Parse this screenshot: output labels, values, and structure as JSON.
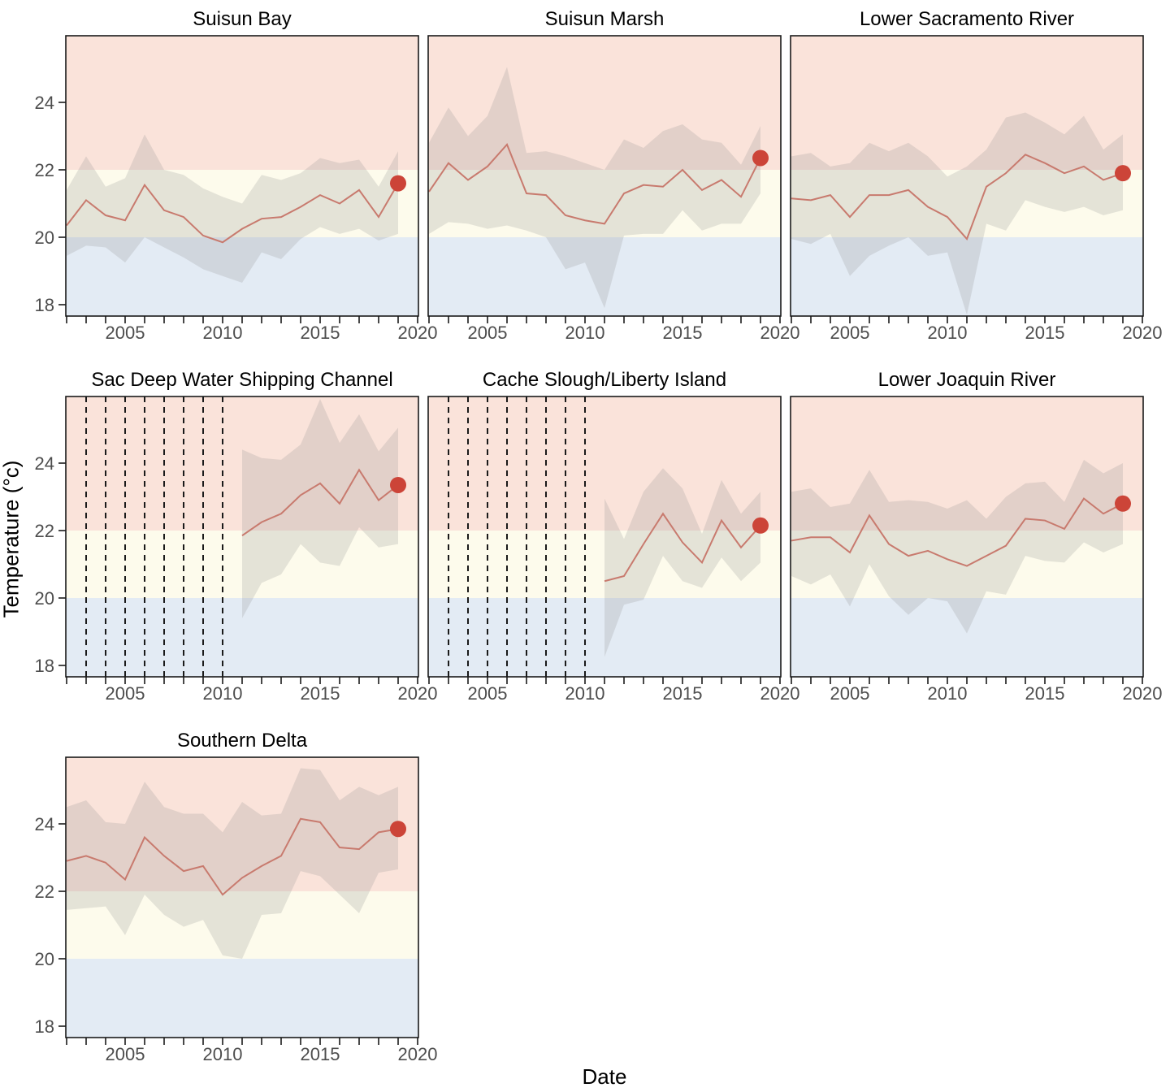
{
  "figure": {
    "x_axis_title": "Date",
    "y_axis_title": "Temperature (°c)",
    "x_tick_labels": [
      2005,
      2010,
      2015,
      2020
    ],
    "y_tick_labels": [
      18,
      20,
      22,
      24
    ],
    "x_range": [
      2002,
      2020
    ],
    "y_range": [
      17.66,
      25.98
    ],
    "thresholds": {
      "cold_max": 20,
      "warm_min": 22
    },
    "legend": "none",
    "grid": false,
    "colors": {
      "band_above_22": "#fae3da",
      "band_20_22": "#fdfbec",
      "band_below_20": "#e3ebf4",
      "ribbon": "rgba(140,140,140,0.22)",
      "mean_line": "#c87a6e",
      "final_point": "#cc4438",
      "missing_line": "#1a1a1a",
      "border": "#1a1a1a",
      "tick_text": "#4d4d4d",
      "title_text": "#000000"
    }
  },
  "chart_data": [
    {
      "type": "line",
      "id": "suisun-bay",
      "title": "Suisun Bay",
      "x": [
        2002,
        2003,
        2004,
        2005,
        2006,
        2007,
        2008,
        2009,
        2010,
        2011,
        2012,
        2013,
        2014,
        2015,
        2016,
        2017,
        2018,
        2019
      ],
      "mean": [
        20.35,
        21.1,
        20.65,
        20.5,
        21.55,
        20.8,
        20.6,
        20.05,
        19.85,
        20.25,
        20.55,
        20.6,
        20.9,
        21.25,
        21.0,
        21.4,
        20.6,
        21.6
      ],
      "upper": [
        21.4,
        22.4,
        21.5,
        21.75,
        23.05,
        22.0,
        21.85,
        21.45,
        21.2,
        21.0,
        21.85,
        21.7,
        21.9,
        22.35,
        22.2,
        22.3,
        21.5,
        22.55
      ],
      "lower": [
        19.45,
        19.75,
        19.7,
        19.25,
        20.0,
        19.7,
        19.4,
        19.05,
        18.85,
        18.65,
        19.55,
        19.35,
        19.95,
        20.3,
        20.1,
        20.25,
        19.9,
        20.1
      ],
      "missing_data_years": [],
      "final_point": {
        "year": 2019,
        "value": 21.6
      }
    },
    {
      "type": "line",
      "id": "suisun-marsh",
      "title": "Suisun Marsh",
      "x": [
        2002,
        2003,
        2004,
        2005,
        2006,
        2007,
        2008,
        2009,
        2010,
        2011,
        2012,
        2013,
        2014,
        2015,
        2016,
        2017,
        2018,
        2019
      ],
      "mean": [
        21.35,
        22.2,
        21.7,
        22.1,
        22.75,
        21.3,
        21.25,
        20.65,
        20.5,
        20.4,
        21.3,
        21.55,
        21.5,
        22.0,
        21.4,
        21.7,
        21.2,
        22.35
      ],
      "upper": [
        22.8,
        23.85,
        23.0,
        23.6,
        25.05,
        22.5,
        22.55,
        22.4,
        22.2,
        22.0,
        22.9,
        22.65,
        23.15,
        23.35,
        22.9,
        22.8,
        22.15,
        23.3
      ],
      "lower": [
        20.1,
        20.45,
        20.4,
        20.25,
        20.35,
        20.2,
        20.0,
        19.05,
        19.25,
        17.9,
        20.05,
        20.1,
        20.1,
        20.8,
        20.2,
        20.4,
        20.4,
        21.3
      ],
      "missing_data_years": [],
      "final_point": {
        "year": 2019,
        "value": 22.35
      }
    },
    {
      "type": "line",
      "id": "lower-sacramento-river",
      "title": "Lower Sacramento River",
      "x": [
        2002,
        2003,
        2004,
        2005,
        2006,
        2007,
        2008,
        2009,
        2010,
        2011,
        2012,
        2013,
        2014,
        2015,
        2016,
        2017,
        2018,
        2019
      ],
      "mean": [
        21.15,
        21.1,
        21.25,
        20.6,
        21.25,
        21.25,
        21.4,
        20.9,
        20.6,
        19.95,
        21.5,
        21.9,
        22.45,
        22.2,
        21.9,
        22.1,
        21.7,
        21.9
      ],
      "upper": [
        22.4,
        22.5,
        22.1,
        22.2,
        22.8,
        22.55,
        22.8,
        22.4,
        21.8,
        22.1,
        22.6,
        23.55,
        23.7,
        23.4,
        23.05,
        23.6,
        22.6,
        23.05
      ],
      "lower": [
        19.95,
        19.8,
        20.1,
        18.85,
        19.45,
        19.75,
        20.0,
        19.45,
        19.55,
        17.7,
        20.4,
        20.2,
        21.1,
        20.9,
        20.75,
        20.9,
        20.65,
        20.8
      ],
      "missing_data_years": [],
      "final_point": {
        "year": 2019,
        "value": 21.9
      }
    },
    {
      "type": "line",
      "id": "sac-deep-water-shipping-channel",
      "title": "Sac Deep Water Shipping Channel",
      "x": [
        2011,
        2012,
        2013,
        2014,
        2015,
        2016,
        2017,
        2018,
        2019
      ],
      "mean": [
        21.85,
        22.25,
        22.5,
        23.05,
        23.4,
        22.8,
        23.8,
        22.9,
        23.35
      ],
      "upper": [
        24.4,
        24.15,
        24.1,
        24.55,
        25.9,
        24.6,
        25.45,
        24.35,
        25.05
      ],
      "lower": [
        19.4,
        20.45,
        20.7,
        21.6,
        21.05,
        20.95,
        22.1,
        21.5,
        21.6
      ],
      "missing_data_years": [
        2003,
        2004,
        2005,
        2006,
        2007,
        2008,
        2009,
        2010
      ],
      "final_point": {
        "year": 2019,
        "value": 23.35
      }
    },
    {
      "type": "line",
      "id": "cache-slough-liberty-island",
      "title": "Cache Slough/Liberty Island",
      "x": [
        2011,
        2012,
        2013,
        2014,
        2015,
        2016,
        2017,
        2018,
        2019
      ],
      "mean": [
        20.5,
        20.65,
        21.6,
        22.5,
        21.65,
        21.05,
        22.3,
        21.5,
        22.15
      ],
      "upper": [
        22.95,
        21.75,
        23.15,
        23.85,
        23.25,
        21.9,
        23.5,
        22.5,
        23.15
      ],
      "lower": [
        18.25,
        19.8,
        19.95,
        21.25,
        20.5,
        20.3,
        21.2,
        20.5,
        21.05
      ],
      "missing_data_years": [
        2003,
        2004,
        2005,
        2006,
        2007,
        2008,
        2009,
        2010
      ],
      "final_point": {
        "year": 2019,
        "value": 22.15
      }
    },
    {
      "type": "line",
      "id": "lower-joaquin-river",
      "title": "Lower Joaquin River",
      "x": [
        2002,
        2003,
        2004,
        2005,
        2006,
        2007,
        2008,
        2009,
        2010,
        2011,
        2012,
        2013,
        2014,
        2015,
        2016,
        2017,
        2018,
        2019
      ],
      "mean": [
        21.7,
        21.8,
        21.8,
        21.35,
        22.45,
        21.6,
        21.25,
        21.4,
        21.15,
        20.95,
        21.25,
        21.55,
        22.35,
        22.3,
        22.05,
        22.95,
        22.5,
        22.8
      ],
      "upper": [
        23.15,
        23.25,
        22.7,
        22.8,
        23.8,
        22.85,
        22.9,
        22.85,
        22.65,
        22.9,
        22.35,
        23.0,
        23.4,
        23.45,
        22.85,
        24.1,
        23.7,
        24.0
      ],
      "lower": [
        20.65,
        20.4,
        20.7,
        19.75,
        21.0,
        20.05,
        19.5,
        20.0,
        19.9,
        18.95,
        20.2,
        20.1,
        21.25,
        21.1,
        21.05,
        21.65,
        21.35,
        21.6
      ],
      "missing_data_years": [],
      "final_point": {
        "year": 2019,
        "value": 22.8
      }
    },
    {
      "type": "line",
      "id": "southern-delta",
      "title": "Southern Delta",
      "x": [
        2002,
        2003,
        2004,
        2005,
        2006,
        2007,
        2008,
        2009,
        2010,
        2011,
        2012,
        2013,
        2014,
        2015,
        2016,
        2017,
        2018,
        2019
      ],
      "mean": [
        22.9,
        23.05,
        22.85,
        22.35,
        23.6,
        23.05,
        22.6,
        22.75,
        21.9,
        22.4,
        22.75,
        23.05,
        24.15,
        24.05,
        23.3,
        23.25,
        23.75,
        23.85
      ],
      "upper": [
        24.5,
        24.7,
        24.05,
        24.0,
        25.25,
        24.5,
        24.3,
        24.3,
        23.75,
        24.65,
        24.25,
        24.3,
        25.65,
        25.6,
        24.7,
        25.1,
        24.85,
        25.1
      ],
      "lower": [
        21.45,
        21.5,
        21.55,
        20.7,
        21.9,
        21.3,
        20.95,
        21.15,
        20.1,
        20.0,
        21.3,
        21.35,
        22.6,
        22.45,
        21.9,
        21.35,
        22.55,
        22.65
      ],
      "missing_data_years": [],
      "final_point": {
        "year": 2019,
        "value": 23.85
      }
    }
  ]
}
